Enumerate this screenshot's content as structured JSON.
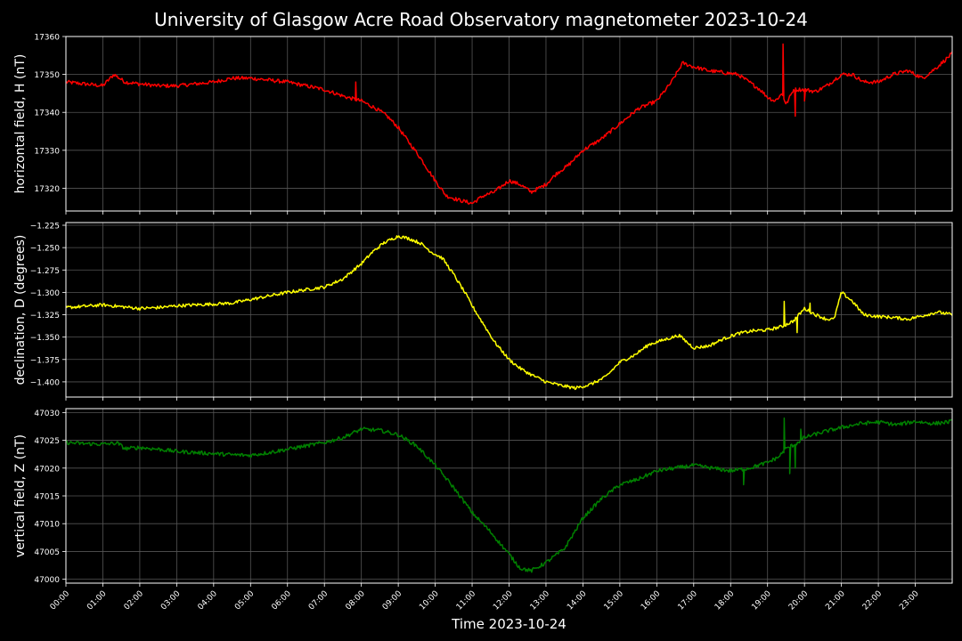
{
  "title": "University of Glasgow Acre Road Observatory magnetometer 2023-10-24",
  "chart_data": {
    "type": "line",
    "xlabel": "Time 2023-10-24",
    "x_ticks": [
      "00:00",
      "01:00",
      "02:00",
      "03:00",
      "04:00",
      "05:00",
      "06:00",
      "07:00",
      "08:00",
      "09:00",
      "10:00",
      "11:00",
      "12:00",
      "13:00",
      "14:00",
      "15:00",
      "16:00",
      "17:00",
      "18:00",
      "19:00",
      "20:00",
      "21:00",
      "22:00",
      "23:00"
    ],
    "xlim": [
      0,
      24
    ],
    "grid": true,
    "panels": [
      {
        "name": "H",
        "ylabel": "horizontal field, H (nT)",
        "color": "#ff0000",
        "ylim": [
          17314,
          17360
        ],
        "y_ticks": [
          17320,
          17330,
          17340,
          17350,
          17360
        ],
        "tick_decimals": 0,
        "noise": 0.5,
        "x": [
          0,
          0.5,
          1.0,
          1.3,
          1.6,
          2.0,
          2.5,
          3.0,
          3.5,
          4.0,
          4.5,
          5.0,
          5.5,
          6.0,
          6.5,
          7.0,
          7.3,
          7.6,
          8.0,
          8.4,
          8.7,
          9.0,
          9.3,
          9.6,
          10.0,
          10.3,
          10.6,
          11.0,
          11.3,
          11.6,
          12.0,
          12.3,
          12.6,
          13.0,
          13.3,
          13.6,
          14.0,
          14.5,
          15.0,
          15.5,
          16.0,
          16.4,
          16.7,
          17.0,
          17.4,
          17.8,
          18.2,
          18.5,
          18.8,
          19.0,
          19.2,
          19.4,
          19.5,
          19.7,
          20.0,
          20.3,
          20.6,
          21.0,
          21.3,
          21.6,
          22.0,
          22.4,
          22.8,
          23.2,
          23.6,
          24.0
        ],
        "values": [
          17348,
          17347.5,
          17347,
          17350,
          17348,
          17347.5,
          17347,
          17347,
          17347.5,
          17348,
          17349,
          17349,
          17348.5,
          17348,
          17347,
          17346,
          17345,
          17344,
          17343,
          17341,
          17339,
          17336,
          17332,
          17328,
          17322,
          17318,
          17317,
          17316,
          17318,
          17319,
          17322,
          17321,
          17319,
          17321,
          17324,
          17326,
          17330,
          17333,
          17337,
          17341,
          17343,
          17348,
          17353,
          17352,
          17351,
          17350.5,
          17350,
          17348,
          17346,
          17344,
          17343,
          17345,
          17342,
          17346,
          17346,
          17345.5,
          17347,
          17350,
          17350,
          17348,
          17348,
          17350,
          17351,
          17349,
          17352,
          17355.5
        ],
        "spikes": [
          {
            "x": 19.42,
            "y": 17358
          },
          {
            "x": 19.75,
            "y": 17339
          },
          {
            "x": 20.0,
            "y": 17343
          },
          {
            "x": 7.85,
            "y": 17348
          }
        ]
      },
      {
        "name": "D",
        "ylabel": "declination, D (degrees)",
        "color": "#ffff00",
        "ylim": [
          -1.417,
          -1.222
        ],
        "y_ticks": [
          -1.4,
          -1.375,
          -1.35,
          -1.325,
          -1.3,
          -1.275,
          -1.25,
          -1.225
        ],
        "tick_decimals": 3,
        "noise": 0.0018,
        "x": [
          0,
          0.7,
          1.0,
          1.5,
          2.0,
          2.5,
          3.0,
          3.5,
          4.0,
          4.5,
          5.0,
          5.5,
          6.0,
          6.5,
          7.0,
          7.5,
          8.0,
          8.3,
          8.6,
          9.0,
          9.3,
          9.6,
          9.9,
          10.2,
          10.5,
          10.8,
          11.0,
          11.3,
          11.6,
          12.0,
          12.3,
          12.6,
          13.0,
          13.4,
          13.8,
          14.2,
          14.6,
          15.0,
          15.4,
          15.8,
          16.2,
          16.6,
          17.0,
          17.4,
          17.8,
          18.2,
          18.6,
          19.0,
          19.4,
          19.7,
          20.0,
          20.3,
          20.6,
          20.8,
          21.0,
          21.3,
          21.6,
          22.0,
          22.4,
          22.8,
          23.2,
          23.6,
          24.0
        ],
        "values": [
          -1.317,
          -1.315,
          -1.314,
          -1.316,
          -1.318,
          -1.317,
          -1.315,
          -1.314,
          -1.313,
          -1.312,
          -1.308,
          -1.304,
          -1.3,
          -1.297,
          -1.294,
          -1.285,
          -1.268,
          -1.255,
          -1.245,
          -1.237,
          -1.24,
          -1.245,
          -1.255,
          -1.262,
          -1.28,
          -1.3,
          -1.315,
          -1.335,
          -1.355,
          -1.375,
          -1.385,
          -1.392,
          -1.4,
          -1.404,
          -1.407,
          -1.403,
          -1.395,
          -1.378,
          -1.37,
          -1.358,
          -1.353,
          -1.348,
          -1.362,
          -1.36,
          -1.352,
          -1.346,
          -1.343,
          -1.342,
          -1.338,
          -1.332,
          -1.318,
          -1.325,
          -1.33,
          -1.33,
          -1.3,
          -1.31,
          -1.325,
          -1.327,
          -1.328,
          -1.33,
          -1.326,
          -1.322,
          -1.325
        ],
        "spikes": [
          {
            "x": 19.45,
            "y": -1.31
          },
          {
            "x": 19.8,
            "y": -1.345
          },
          {
            "x": 20.15,
            "y": -1.312
          }
        ]
      },
      {
        "name": "Z",
        "ylabel": "vertical field, Z (nT)",
        "color": "#008000",
        "ylim": [
          46999.3,
          47030.7
        ],
        "y_ticks": [
          47000,
          47005,
          47010,
          47015,
          47020,
          47025,
          47030
        ],
        "tick_decimals": 0,
        "noise": 0.35,
        "x": [
          0,
          0.5,
          1.0,
          1.4,
          1.6,
          2.0,
          2.5,
          3.0,
          3.5,
          4.0,
          4.5,
          5.0,
          5.5,
          6.0,
          6.5,
          7.0,
          7.5,
          8.0,
          8.5,
          9.0,
          9.5,
          10.0,
          10.5,
          11.0,
          11.5,
          12.0,
          12.3,
          12.6,
          13.0,
          13.5,
          14.0,
          14.5,
          15.0,
          15.5,
          16.0,
          16.5,
          17.0,
          17.5,
          18.0,
          18.5,
          19.0,
          19.3,
          19.5,
          19.8,
          20.0,
          20.5,
          21.0,
          21.5,
          22.0,
          22.5,
          23.0,
          23.5,
          24.0
        ],
        "values": [
          47024.6,
          47024.4,
          47024.3,
          47024.5,
          47023.5,
          47023.7,
          47023.4,
          47023.0,
          47022.8,
          47022.6,
          47022.4,
          47022.3,
          47022.8,
          47023.4,
          47024.0,
          47024.6,
          47025.5,
          47027.0,
          47026.8,
          47026.0,
          47024.0,
          47020.5,
          47016.5,
          47012.0,
          47008.5,
          47004.5,
          47002.0,
          47001.5,
          47003.0,
          47005.5,
          47011.0,
          47014.5,
          47017.0,
          47018.0,
          47019.5,
          47020.0,
          47020.5,
          47020.0,
          47019.5,
          47020.0,
          47021.0,
          47022.0,
          47023.5,
          47024.5,
          47025.5,
          47026.5,
          47027.3,
          47028.0,
          47028.3,
          47027.8,
          47028.4,
          47028.0,
          47028.4
        ],
        "spikes": [
          {
            "x": 19.45,
            "y": 47029.0
          },
          {
            "x": 19.75,
            "y": 47020.0
          },
          {
            "x": 19.9,
            "y": 47027.0
          },
          {
            "x": 18.35,
            "y": 47017.0
          },
          {
            "x": 19.6,
            "y": 47019.0
          }
        ]
      }
    ]
  }
}
